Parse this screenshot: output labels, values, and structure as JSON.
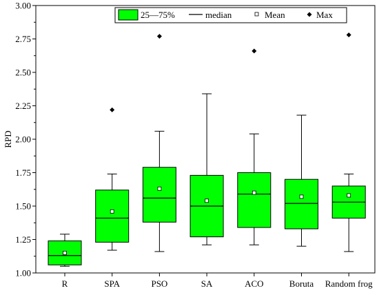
{
  "chart_data": {
    "type": "box",
    "ylabel": "RPD",
    "xlabel": "",
    "ylim": [
      1.0,
      3.0
    ],
    "yticks": [
      1.0,
      1.25,
      1.5,
      1.75,
      2.0,
      2.25,
      2.5,
      2.75,
      3.0
    ],
    "ytick_labels": [
      "1.00",
      "1.25",
      "1.50",
      "1.75",
      "2.00",
      "2.25",
      "2.50",
      "2.75",
      "3.00"
    ],
    "grid": false,
    "legend_position": "top",
    "box_color": "#00ff00",
    "categories": [
      "R",
      "SPA",
      "PSO",
      "SA",
      "ACO",
      "Boruta",
      "Random frog"
    ],
    "boxes": [
      {
        "category": "R",
        "whisker_low": 1.05,
        "q1": 1.06,
        "median": 1.13,
        "q3": 1.24,
        "whisker_high": 1.29,
        "mean": 1.15,
        "max": null
      },
      {
        "category": "SPA",
        "whisker_low": 1.17,
        "q1": 1.23,
        "median": 1.41,
        "q3": 1.62,
        "whisker_high": 1.74,
        "mean": 1.46,
        "max": 2.22
      },
      {
        "category": "PSO",
        "whisker_low": 1.16,
        "q1": 1.38,
        "median": 1.56,
        "q3": 1.79,
        "whisker_high": 2.06,
        "mean": 1.63,
        "max": 2.77
      },
      {
        "category": "SA",
        "whisker_low": 1.21,
        "q1": 1.27,
        "median": 1.5,
        "q3": 1.73,
        "whisker_high": 2.34,
        "mean": 1.54,
        "max": null
      },
      {
        "category": "ACO",
        "whisker_low": 1.21,
        "q1": 1.34,
        "median": 1.59,
        "q3": 1.75,
        "whisker_high": 2.04,
        "mean": 1.6,
        "max": 2.66
      },
      {
        "category": "Boruta",
        "whisker_low": 1.2,
        "q1": 1.33,
        "median": 1.52,
        "q3": 1.7,
        "whisker_high": 2.18,
        "mean": 1.57,
        "max": null
      },
      {
        "category": "Random frog",
        "whisker_low": 1.16,
        "q1": 1.41,
        "median": 1.53,
        "q3": 1.65,
        "whisker_high": 1.74,
        "mean": 1.58,
        "max": 2.78
      }
    ],
    "legend": {
      "box": "25—75%",
      "median": "median",
      "mean": "Mean",
      "max": "Max"
    }
  }
}
